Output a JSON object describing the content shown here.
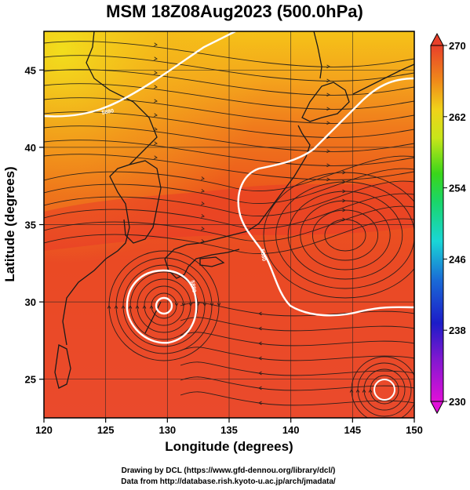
{
  "title": "MSM 18Z08Aug2023 (500.0hPa)",
  "axes": {
    "xlabel": "Longitude (degrees)",
    "ylabel": "Latitude  (degrees)",
    "xlim": [
      120,
      150
    ],
    "ylim": [
      22.5,
      47.5
    ],
    "xticks": [
      "120",
      "125",
      "130",
      "135",
      "140",
      "145",
      "150"
    ],
    "yticks": [
      "25",
      "30",
      "35",
      "40",
      "45"
    ]
  },
  "colorbar": {
    "min": 230,
    "max": 270,
    "labels": [
      "270",
      "262",
      "254",
      "246",
      "238",
      "230"
    ],
    "colors": [
      "#d61ad0",
      "#1c1cc8",
      "#1a7ad6",
      "#1ad6d6",
      "#1ad61a",
      "#a0e61a",
      "#f0f01a",
      "#f0a01a",
      "#f0501a",
      "#e41a1a"
    ]
  },
  "contours": [
    {
      "label": "5880",
      "color": "#ffffff"
    },
    {
      "label": "5880",
      "color": "#ffffff"
    },
    {
      "label": "5880",
      "color": "#ffffff"
    }
  ],
  "credits": {
    "line1": "Drawing by DCL (https://www.gfd-dennou.org/library/dcl/)",
    "line2": "Data from http://database.rish.kyoto-u.ac.jp/arch/jmadata/"
  }
}
